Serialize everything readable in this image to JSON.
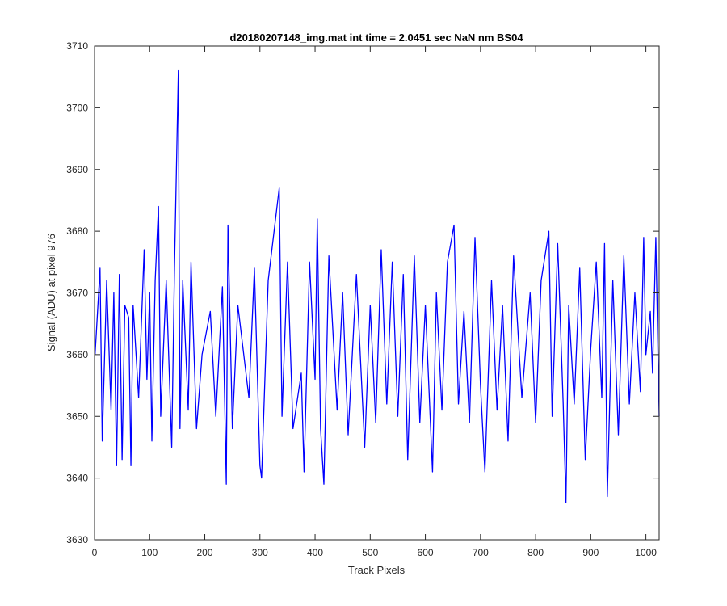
{
  "chart_data": {
    "type": "line",
    "title": "d20180207148_img.mat int time = 2.0451 sec  NaN nm BS04",
    "xlabel": "Track Pixels",
    "ylabel": "Signal (ADU) at pixel 976",
    "xlim": [
      0,
      1024
    ],
    "ylim": [
      3630,
      3710
    ],
    "xticks": [
      0,
      100,
      200,
      300,
      400,
      500,
      600,
      700,
      800,
      900,
      1000
    ],
    "yticks": [
      3630,
      3640,
      3650,
      3660,
      3670,
      3680,
      3690,
      3700,
      3710
    ],
    "grid": false,
    "legend": "none",
    "series": [
      {
        "color": "#0000ff",
        "x": [
          1,
          10,
          14,
          22,
          30,
          35,
          40,
          45,
          50,
          55,
          62,
          66,
          70,
          80,
          90,
          95,
          100,
          104,
          110,
          116,
          120,
          130,
          140,
          145,
          152,
          155,
          160,
          170,
          175,
          185,
          195,
          210,
          220,
          232,
          239,
          242,
          250,
          260,
          280,
          290,
          300,
          303,
          315,
          335,
          340,
          350,
          360,
          375,
          380,
          390,
          400,
          404,
          410,
          416,
          425,
          440,
          450,
          460,
          475,
          490,
          500,
          510,
          520,
          530,
          540,
          550,
          560,
          568,
          580,
          590,
          600,
          613,
          620,
          630,
          640,
          652,
          660,
          670,
          680,
          690,
          700,
          708,
          720,
          730,
          740,
          750,
          760,
          775,
          790,
          800,
          810,
          824,
          830,
          840,
          850,
          855,
          860,
          870,
          880,
          890,
          900,
          910,
          920,
          925,
          930,
          940,
          950,
          960,
          970,
          980,
          990,
          996,
          1000,
          1008,
          1012,
          1018,
          1024
        ],
        "y": [
          3660,
          3674,
          3646,
          3672,
          3651,
          3670,
          3642,
          3673,
          3643,
          3668,
          3666,
          3642,
          3668,
          3653,
          3677,
          3656,
          3670,
          3646,
          3672,
          3684,
          3650,
          3672,
          3645,
          3674,
          3706,
          3648,
          3672,
          3651,
          3675,
          3648,
          3660,
          3667,
          3650,
          3671,
          3639,
          3681,
          3648,
          3668,
          3653,
          3674,
          3642,
          3640,
          3672,
          3687,
          3650,
          3675,
          3648,
          3657,
          3641,
          3675,
          3656,
          3682,
          3648,
          3639,
          3676,
          3651,
          3670,
          3647,
          3673,
          3645,
          3668,
          3649,
          3677,
          3652,
          3675,
          3650,
          3673,
          3643,
          3676,
          3649,
          3668,
          3641,
          3670,
          3651,
          3675,
          3681,
          3652,
          3667,
          3649,
          3679,
          3655,
          3641,
          3672,
          3651,
          3668,
          3646,
          3676,
          3653,
          3670,
          3649,
          3672,
          3680,
          3650,
          3678,
          3652,
          3636,
          3668,
          3652,
          3674,
          3643,
          3661,
          3675,
          3653,
          3678,
          3637,
          3672,
          3647,
          3676,
          3652,
          3670,
          3654,
          3679,
          3660,
          3667,
          3657,
          3679,
          3650
        ]
      }
    ]
  }
}
